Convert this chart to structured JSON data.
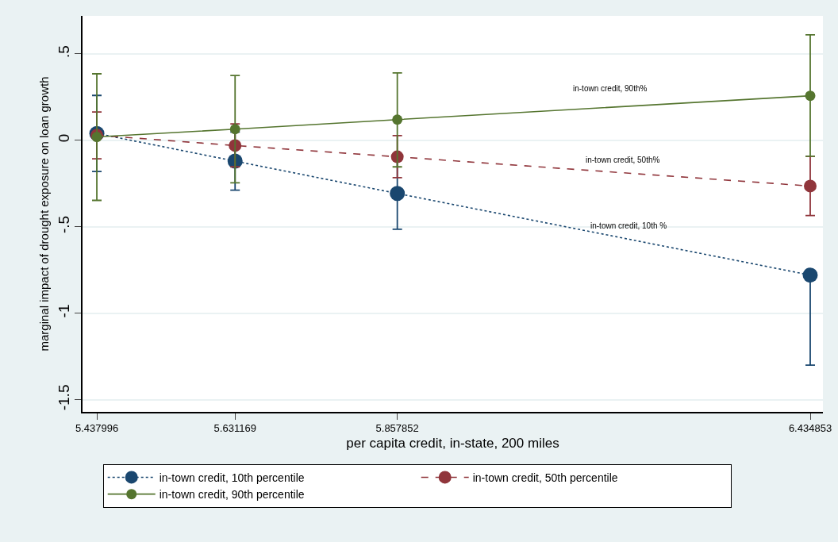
{
  "chart_data": {
    "type": "line",
    "xlabel": "per capita credit, in-state, 200 miles",
    "ylabel": "marginal impact of drought exposure on loan growth",
    "x": [
      5.437996,
      5.631169,
      5.857852,
      6.434853
    ],
    "series": [
      {
        "name": "in-town credit, 10th percentile",
        "color": "#1a476f",
        "line_style": "dotted",
        "values": [
          0.04,
          -0.12,
          -0.307,
          -0.779
        ],
        "errors": [
          [
            -0.18,
            0.26
          ],
          [
            -0.288,
            0.048
          ],
          [
            -0.514,
            -0.1
          ],
          [
            -1.3,
            -0.779
          ]
        ]
      },
      {
        "name": "in-town credit, 50th percentile",
        "color": "#90353b",
        "line_style": "dashed",
        "values": [
          0.03,
          -0.03,
          -0.095,
          -0.264
        ],
        "errors": [
          [
            -0.107,
            0.164
          ],
          [
            -0.153,
            0.095
          ],
          [
            -0.216,
            0.028
          ],
          [
            -0.435,
            -0.092
          ]
        ]
      },
      {
        "name": "in-town credit, 90th percentile",
        "color": "#55752f",
        "line_style": "solid",
        "values": [
          0.02,
          0.065,
          0.12,
          0.258
        ],
        "errors": [
          [
            -0.347,
            0.385
          ],
          [
            -0.245,
            0.375
          ],
          [
            -0.153,
            0.39
          ],
          [
            -0.092,
            0.61
          ]
        ]
      }
    ],
    "annotations": [
      "in-town credit, 90th%",
      "in-town credit, 50th%",
      "in-town credit, 10th %"
    ],
    "xlim": [
      5.418,
      6.4526
    ],
    "xticks": [
      5.437996,
      5.631169,
      5.857852,
      6.434853
    ],
    "ylim": [
      -1.57,
      0.72
    ],
    "yticks": [
      {
        "value": 0.5,
        "label": ".5"
      },
      0,
      {
        "value": -0.5,
        "label": "-.5"
      },
      -1,
      -1.5
    ],
    "grid": "y",
    "legend": "bottom",
    "marker": "circle"
  }
}
